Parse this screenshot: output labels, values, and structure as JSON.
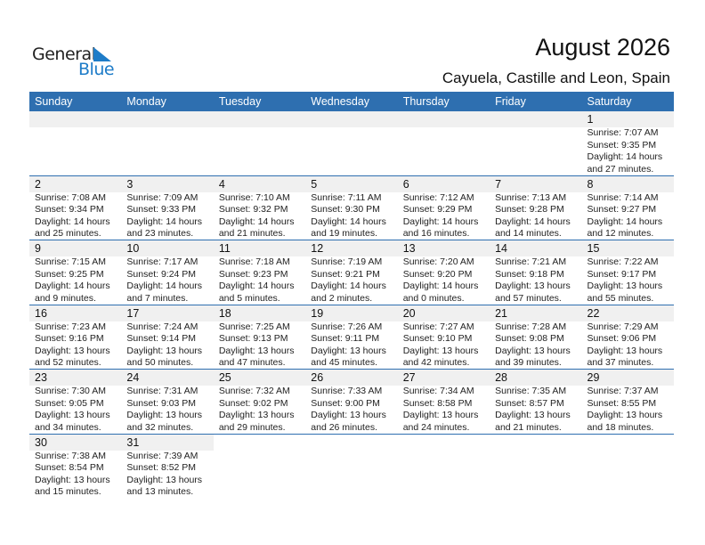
{
  "logo": {
    "line1": "General",
    "line2": "Blue"
  },
  "header": {
    "title": "August 2026",
    "subtitle": "Cayuela, Castille and Leon, Spain"
  },
  "colors": {
    "accent": "#2e6fb0",
    "strip": "#f0f0f0"
  },
  "weekdays": [
    "Sunday",
    "Monday",
    "Tuesday",
    "Wednesday",
    "Thursday",
    "Friday",
    "Saturday"
  ],
  "first_weekday_index": 6,
  "days": [
    {
      "day": "1",
      "sunrise": "Sunrise: 7:07 AM",
      "sunset": "Sunset: 9:35 PM",
      "daylight": "Daylight: 14 hours",
      "minutes": "and 27 minutes."
    },
    {
      "day": "2",
      "sunrise": "Sunrise: 7:08 AM",
      "sunset": "Sunset: 9:34 PM",
      "daylight": "Daylight: 14 hours",
      "minutes": "and 25 minutes."
    },
    {
      "day": "3",
      "sunrise": "Sunrise: 7:09 AM",
      "sunset": "Sunset: 9:33 PM",
      "daylight": "Daylight: 14 hours",
      "minutes": "and 23 minutes."
    },
    {
      "day": "4",
      "sunrise": "Sunrise: 7:10 AM",
      "sunset": "Sunset: 9:32 PM",
      "daylight": "Daylight: 14 hours",
      "minutes": "and 21 minutes."
    },
    {
      "day": "5",
      "sunrise": "Sunrise: 7:11 AM",
      "sunset": "Sunset: 9:30 PM",
      "daylight": "Daylight: 14 hours",
      "minutes": "and 19 minutes."
    },
    {
      "day": "6",
      "sunrise": "Sunrise: 7:12 AM",
      "sunset": "Sunset: 9:29 PM",
      "daylight": "Daylight: 14 hours",
      "minutes": "and 16 minutes."
    },
    {
      "day": "7",
      "sunrise": "Sunrise: 7:13 AM",
      "sunset": "Sunset: 9:28 PM",
      "daylight": "Daylight: 14 hours",
      "minutes": "and 14 minutes."
    },
    {
      "day": "8",
      "sunrise": "Sunrise: 7:14 AM",
      "sunset": "Sunset: 9:27 PM",
      "daylight": "Daylight: 14 hours",
      "minutes": "and 12 minutes."
    },
    {
      "day": "9",
      "sunrise": "Sunrise: 7:15 AM",
      "sunset": "Sunset: 9:25 PM",
      "daylight": "Daylight: 14 hours",
      "minutes": "and 9 minutes."
    },
    {
      "day": "10",
      "sunrise": "Sunrise: 7:17 AM",
      "sunset": "Sunset: 9:24 PM",
      "daylight": "Daylight: 14 hours",
      "minutes": "and 7 minutes."
    },
    {
      "day": "11",
      "sunrise": "Sunrise: 7:18 AM",
      "sunset": "Sunset: 9:23 PM",
      "daylight": "Daylight: 14 hours",
      "minutes": "and 5 minutes."
    },
    {
      "day": "12",
      "sunrise": "Sunrise: 7:19 AM",
      "sunset": "Sunset: 9:21 PM",
      "daylight": "Daylight: 14 hours",
      "minutes": "and 2 minutes."
    },
    {
      "day": "13",
      "sunrise": "Sunrise: 7:20 AM",
      "sunset": "Sunset: 9:20 PM",
      "daylight": "Daylight: 14 hours",
      "minutes": "and 0 minutes."
    },
    {
      "day": "14",
      "sunrise": "Sunrise: 7:21 AM",
      "sunset": "Sunset: 9:18 PM",
      "daylight": "Daylight: 13 hours",
      "minutes": "and 57 minutes."
    },
    {
      "day": "15",
      "sunrise": "Sunrise: 7:22 AM",
      "sunset": "Sunset: 9:17 PM",
      "daylight": "Daylight: 13 hours",
      "minutes": "and 55 minutes."
    },
    {
      "day": "16",
      "sunrise": "Sunrise: 7:23 AM",
      "sunset": "Sunset: 9:16 PM",
      "daylight": "Daylight: 13 hours",
      "minutes": "and 52 minutes."
    },
    {
      "day": "17",
      "sunrise": "Sunrise: 7:24 AM",
      "sunset": "Sunset: 9:14 PM",
      "daylight": "Daylight: 13 hours",
      "minutes": "and 50 minutes."
    },
    {
      "day": "18",
      "sunrise": "Sunrise: 7:25 AM",
      "sunset": "Sunset: 9:13 PM",
      "daylight": "Daylight: 13 hours",
      "minutes": "and 47 minutes."
    },
    {
      "day": "19",
      "sunrise": "Sunrise: 7:26 AM",
      "sunset": "Sunset: 9:11 PM",
      "daylight": "Daylight: 13 hours",
      "minutes": "and 45 minutes."
    },
    {
      "day": "20",
      "sunrise": "Sunrise: 7:27 AM",
      "sunset": "Sunset: 9:10 PM",
      "daylight": "Daylight: 13 hours",
      "minutes": "and 42 minutes."
    },
    {
      "day": "21",
      "sunrise": "Sunrise: 7:28 AM",
      "sunset": "Sunset: 9:08 PM",
      "daylight": "Daylight: 13 hours",
      "minutes": "and 39 minutes."
    },
    {
      "day": "22",
      "sunrise": "Sunrise: 7:29 AM",
      "sunset": "Sunset: 9:06 PM",
      "daylight": "Daylight: 13 hours",
      "minutes": "and 37 minutes."
    },
    {
      "day": "23",
      "sunrise": "Sunrise: 7:30 AM",
      "sunset": "Sunset: 9:05 PM",
      "daylight": "Daylight: 13 hours",
      "minutes": "and 34 minutes."
    },
    {
      "day": "24",
      "sunrise": "Sunrise: 7:31 AM",
      "sunset": "Sunset: 9:03 PM",
      "daylight": "Daylight: 13 hours",
      "minutes": "and 32 minutes."
    },
    {
      "day": "25",
      "sunrise": "Sunrise: 7:32 AM",
      "sunset": "Sunset: 9:02 PM",
      "daylight": "Daylight: 13 hours",
      "minutes": "and 29 minutes."
    },
    {
      "day": "26",
      "sunrise": "Sunrise: 7:33 AM",
      "sunset": "Sunset: 9:00 PM",
      "daylight": "Daylight: 13 hours",
      "minutes": "and 26 minutes."
    },
    {
      "day": "27",
      "sunrise": "Sunrise: 7:34 AM",
      "sunset": "Sunset: 8:58 PM",
      "daylight": "Daylight: 13 hours",
      "minutes": "and 24 minutes."
    },
    {
      "day": "28",
      "sunrise": "Sunrise: 7:35 AM",
      "sunset": "Sunset: 8:57 PM",
      "daylight": "Daylight: 13 hours",
      "minutes": "and 21 minutes."
    },
    {
      "day": "29",
      "sunrise": "Sunrise: 7:37 AM",
      "sunset": "Sunset: 8:55 PM",
      "daylight": "Daylight: 13 hours",
      "minutes": "and 18 minutes."
    },
    {
      "day": "30",
      "sunrise": "Sunrise: 7:38 AM",
      "sunset": "Sunset: 8:54 PM",
      "daylight": "Daylight: 13 hours",
      "minutes": "and 15 minutes."
    },
    {
      "day": "31",
      "sunrise": "Sunrise: 7:39 AM",
      "sunset": "Sunset: 8:52 PM",
      "daylight": "Daylight: 13 hours",
      "minutes": "and 13 minutes."
    }
  ]
}
